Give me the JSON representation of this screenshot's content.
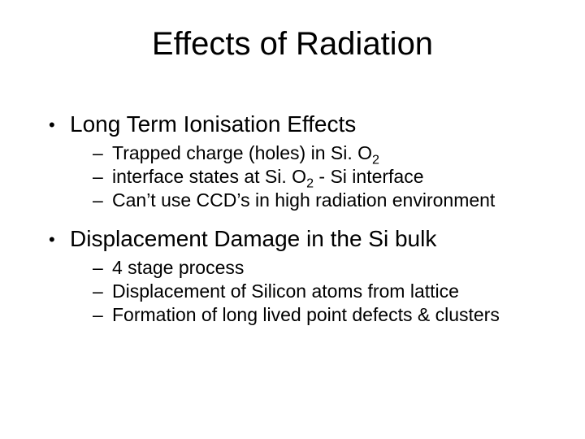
{
  "title": "Effects of Radiation",
  "bullets": [
    {
      "text": "Long Term Ionisation Effects",
      "sub": [
        {
          "pre": "Trapped charge (holes) in Si. O",
          "subnum": "2",
          "post": ""
        },
        {
          "pre": "interface states at Si. O",
          "subnum": "2",
          "post": " - Si interface"
        },
        {
          "pre": "Can’t use CCD’s in high radiation environment",
          "subnum": "",
          "post": ""
        }
      ]
    },
    {
      "text": "Displacement Damage in the Si bulk",
      "sub": [
        {
          "pre": "4 stage process",
          "subnum": "",
          "post": ""
        },
        {
          "pre": "Displacement of Silicon atoms from lattice",
          "subnum": "",
          "post": ""
        },
        {
          "pre": "Formation of long lived point defects & clusters",
          "subnum": "",
          "post": ""
        }
      ]
    }
  ]
}
